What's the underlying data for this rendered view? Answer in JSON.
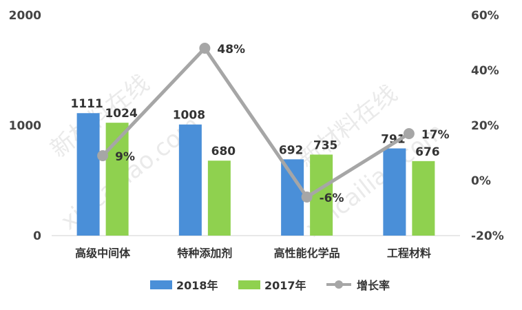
{
  "chart_data": {
    "type": "bar",
    "categories": [
      "高级中间体",
      "特种添加剂",
      "高性能化学品",
      "工程材料"
    ],
    "series": [
      {
        "name": "2018年",
        "values": [
          1111,
          1008,
          692,
          791
        ],
        "color": "#4a8fd8"
      },
      {
        "name": "2017年",
        "values": [
          1024,
          680,
          735,
          676
        ],
        "color": "#8fd14f"
      }
    ],
    "line_series": {
      "name": "增长率",
      "values": [
        9,
        48,
        -6,
        17
      ],
      "unit": "%",
      "axis": "right",
      "color": "#a6a6a6"
    },
    "y_left": {
      "lim": [
        0,
        2000
      ],
      "ticks": [
        "0",
        "1000",
        "2000"
      ]
    },
    "y_right": {
      "lim": [
        -20,
        60
      ],
      "ticks": [
        "-20%",
        "0%",
        "20%",
        "40%",
        "60%"
      ]
    },
    "grid": false,
    "legend": "bottom"
  },
  "watermark": {
    "cn": "新材料在线",
    "en": "xincailiao.com"
  }
}
